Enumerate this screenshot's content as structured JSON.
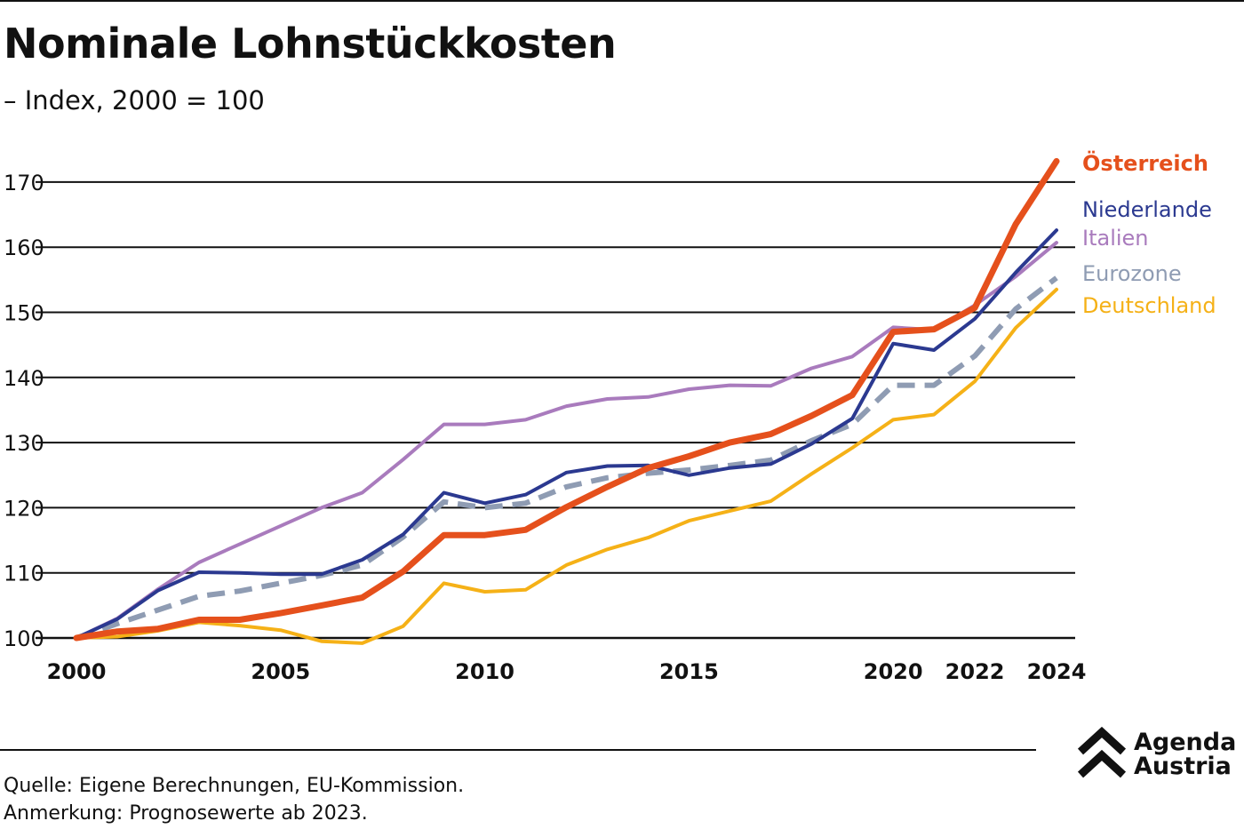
{
  "title": "Nominale Lohnstückkosten",
  "subtitle": "– Index, 2000 = 100",
  "source": "Quelle: Eigene Berechnungen, EU-Kommission.",
  "note": "Anmerkung: Prognosewerte ab 2023.",
  "logo": {
    "line1": "Agenda",
    "line2": "Austria"
  },
  "chart_data": {
    "type": "line",
    "title": "Nominale Lohnstückkosten",
    "subtitle": "– Index, 2000 = 100",
    "xlabel": "",
    "ylabel": "",
    "xlim": [
      2000,
      2024
    ],
    "ylim": [
      100,
      175
    ],
    "grid": true,
    "legend": "right, labels at line ends",
    "x": [
      2000,
      2001,
      2002,
      2003,
      2004,
      2005,
      2006,
      2007,
      2008,
      2009,
      2010,
      2011,
      2012,
      2013,
      2014,
      2015,
      2016,
      2017,
      2018,
      2019,
      2020,
      2021,
      2022,
      2023,
      2024
    ],
    "x_ticks": [
      2000,
      2005,
      2010,
      2015,
      2020,
      2022,
      2024
    ],
    "y_ticks": [
      100,
      110,
      120,
      130,
      140,
      150,
      160,
      170
    ],
    "series": [
      {
        "name": "Italien",
        "color": "#a97bbd",
        "width": 4,
        "dash": "",
        "values": [
          100,
          103,
          107.5,
          111.6,
          114.4,
          117.2,
          120,
          122.3,
          127.4,
          132.8,
          132.8,
          133.5,
          135.6,
          136.7,
          137,
          138.2,
          138.8,
          138.7,
          141.4,
          143.2,
          147.7,
          147.3,
          151.1,
          155.5,
          160.7
        ]
      },
      {
        "name": "Eurozone",
        "color": "#8f9cb3",
        "width": 6,
        "dash": "20,11",
        "values": [
          100,
          102.2,
          104.3,
          106.4,
          107.2,
          108.4,
          109.6,
          111.2,
          115.5,
          120.9,
          120,
          120.7,
          123.2,
          124.6,
          125.3,
          125.8,
          126.5,
          127.3,
          130.3,
          132.8,
          138.8,
          138.8,
          143.3,
          150.5,
          155.3
        ]
      },
      {
        "name": "Deutschland",
        "color": "#f5b117",
        "width": 4,
        "dash": "",
        "values": [
          100,
          100.2,
          101.1,
          102.4,
          101.9,
          101.2,
          99.5,
          99.2,
          101.8,
          108.4,
          107.1,
          107.4,
          111.2,
          113.6,
          115.4,
          118,
          119.5,
          121,
          125.2,
          129.2,
          133.5,
          134.3,
          139.4,
          147.6,
          153.5
        ]
      },
      {
        "name": "Niederlande",
        "color": "#2b3990",
        "width": 4,
        "dash": "",
        "values": [
          100,
          102.9,
          107.3,
          110.1,
          110,
          109.8,
          109.8,
          112,
          115.9,
          122.3,
          120.7,
          122,
          125.4,
          126.4,
          126.5,
          125,
          126.1,
          126.7,
          129.8,
          133.7,
          145.2,
          144.2,
          149,
          156.1,
          162.6
        ]
      },
      {
        "name": "Österreich",
        "color": "#e5501c",
        "width": 7,
        "dash": "",
        "values": [
          100,
          101,
          101.4,
          102.8,
          102.8,
          103.8,
          105,
          106.2,
          110.2,
          115.8,
          115.8,
          116.6,
          120.1,
          123.2,
          126.1,
          127.9,
          130,
          131.3,
          134.1,
          137.3,
          147,
          147.4,
          150.7,
          163.5,
          173.2
        ]
      }
    ],
    "labels": [
      {
        "name": "Österreich",
        "color": "#e5501c",
        "bold": true
      },
      {
        "name": "Niederlande",
        "color": "#2b3990",
        "bold": false
      },
      {
        "name": "Italien",
        "color": "#a97bbd",
        "bold": false
      },
      {
        "name": "Eurozone",
        "color": "#8f9cb3",
        "bold": false
      },
      {
        "name": "Deutschland",
        "color": "#f5b117",
        "bold": false
      }
    ]
  }
}
